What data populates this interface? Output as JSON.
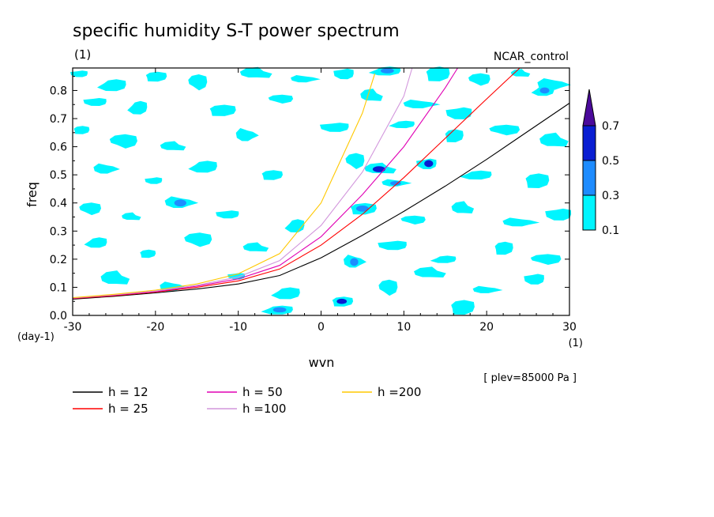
{
  "title": "specific humidity S-T power spectrum",
  "subtitle_left": "(1)",
  "subtitle_right": "NCAR_control",
  "footnote": "[ plev=85000 Pa ]",
  "colors": {
    "fill_01": "#00f5ff",
    "fill_03": "#1e8cff",
    "fill_05": "#0a1ed2",
    "fill_07": "#4b0a9b"
  },
  "chart_data": {
    "type": "contour",
    "xlabel": "wvn",
    "xunit": "(1)",
    "ylabel": "freq",
    "yunit": "(day-1)",
    "xlim": [
      -30,
      30
    ],
    "ylim": [
      0,
      0.88
    ],
    "xticks": [
      -30,
      -20,
      -10,
      0,
      10,
      20,
      30
    ],
    "xtick_labels": [
      "-30",
      "-20",
      "-10",
      "0",
      "10",
      "20",
      "30"
    ],
    "yticks": [
      0,
      0.1,
      0.2,
      0.3,
      0.4,
      0.5,
      0.6,
      0.7,
      0.8
    ],
    "ytick_labels": [
      "0.0",
      "0.1",
      "0.2",
      "0.3",
      "0.4",
      "0.5",
      "0.6",
      "0.7",
      "0.8"
    ],
    "colorbar": {
      "levels": [
        0.1,
        0.3,
        0.5,
        0.7
      ],
      "level_labels": [
        "0.1",
        "0.3",
        "0.5",
        "0.7"
      ],
      "colors": [
        "#00f5ff",
        "#1e8cff",
        "#0a1ed2",
        "#4b0a9b"
      ]
    },
    "series": [
      {
        "name": "h = 12",
        "color": "#000000",
        "x": [
          -30,
          -25,
          -20,
          -15,
          -10,
          -5,
          0,
          5,
          10,
          15,
          20,
          25,
          30
        ],
        "y": [
          0.058,
          0.068,
          0.08,
          0.094,
          0.112,
          0.142,
          0.205,
          0.285,
          0.37,
          0.46,
          0.555,
          0.655,
          0.755
        ]
      },
      {
        "name": "h = 25",
        "color": "#ff0000",
        "x": [
          -30,
          -25,
          -20,
          -15,
          -10,
          -5,
          0,
          5,
          10,
          15,
          20,
          24
        ],
        "y": [
          0.06,
          0.07,
          0.083,
          0.1,
          0.123,
          0.165,
          0.25,
          0.36,
          0.49,
          0.63,
          0.77,
          0.88
        ]
      },
      {
        "name": "h = 50",
        "color": "#e000b4",
        "x": [
          -30,
          -25,
          -20,
          -15,
          -10,
          -5,
          0,
          5,
          10,
          15,
          16.5
        ],
        "y": [
          0.061,
          0.072,
          0.085,
          0.104,
          0.13,
          0.178,
          0.28,
          0.43,
          0.6,
          0.81,
          0.88
        ]
      },
      {
        "name": "h =100",
        "color": "#d296dc",
        "x": [
          -30,
          -25,
          -20,
          -15,
          -10,
          -5,
          0,
          5,
          10,
          11
        ],
        "y": [
          0.062,
          0.073,
          0.087,
          0.107,
          0.137,
          0.195,
          0.32,
          0.51,
          0.78,
          0.88
        ]
      },
      {
        "name": "h =200",
        "color": "#ffc800",
        "x": [
          -30,
          -25,
          -20,
          -15,
          -10,
          -5,
          0,
          5,
          6.5
        ],
        "y": [
          0.063,
          0.075,
          0.09,
          0.112,
          0.148,
          0.22,
          0.4,
          0.72,
          0.86
        ]
      }
    ],
    "contour_patches": [
      {
        "x": -29,
        "y": 0.86,
        "level": 0.1
      },
      {
        "x": -25,
        "y": 0.82,
        "level": 0.1
      },
      {
        "x": -20,
        "y": 0.85,
        "level": 0.1
      },
      {
        "x": -15,
        "y": 0.83,
        "level": 0.1
      },
      {
        "x": -8,
        "y": 0.86,
        "level": 0.1
      },
      {
        "x": -2,
        "y": 0.84,
        "level": 0.1
      },
      {
        "x": 3,
        "y": 0.86,
        "level": 0.1
      },
      {
        "x": 8,
        "y": 0.87,
        "level": 0.3
      },
      {
        "x": 14,
        "y": 0.86,
        "level": 0.1
      },
      {
        "x": 19,
        "y": 0.84,
        "level": 0.1
      },
      {
        "x": 24,
        "y": 0.86,
        "level": 0.1
      },
      {
        "x": 28,
        "y": 0.82,
        "level": 0.1
      },
      {
        "x": -27,
        "y": 0.76,
        "level": 0.1
      },
      {
        "x": -22,
        "y": 0.74,
        "level": 0.1
      },
      {
        "x": -12,
        "y": 0.73,
        "level": 0.1
      },
      {
        "x": -5,
        "y": 0.77,
        "level": 0.1
      },
      {
        "x": 6,
        "y": 0.78,
        "level": 0.1
      },
      {
        "x": 12,
        "y": 0.75,
        "level": 0.1
      },
      {
        "x": 17,
        "y": 0.72,
        "level": 0.1
      },
      {
        "x": 27,
        "y": 0.8,
        "level": 0.3
      },
      {
        "x": -29,
        "y": 0.66,
        "level": 0.1
      },
      {
        "x": -24,
        "y": 0.62,
        "level": 0.1
      },
      {
        "x": -18,
        "y": 0.6,
        "level": 0.1
      },
      {
        "x": -9,
        "y": 0.64,
        "level": 0.1
      },
      {
        "x": 2,
        "y": 0.67,
        "level": 0.1
      },
      {
        "x": 10,
        "y": 0.68,
        "level": 0.1
      },
      {
        "x": 16,
        "y": 0.64,
        "level": 0.1
      },
      {
        "x": 22,
        "y": 0.66,
        "level": 0.1
      },
      {
        "x": 28,
        "y": 0.62,
        "level": 0.1
      },
      {
        "x": -26,
        "y": 0.52,
        "level": 0.1
      },
      {
        "x": -20,
        "y": 0.48,
        "level": 0.1
      },
      {
        "x": -14,
        "y": 0.53,
        "level": 0.1
      },
      {
        "x": -6,
        "y": 0.5,
        "level": 0.1
      },
      {
        "x": 4,
        "y": 0.55,
        "level": 0.1
      },
      {
        "x": 7,
        "y": 0.52,
        "level": 0.5
      },
      {
        "x": 9,
        "y": 0.47,
        "level": 0.3
      },
      {
        "x": 13,
        "y": 0.54,
        "level": 0.5
      },
      {
        "x": 19,
        "y": 0.5,
        "level": 0.1
      },
      {
        "x": 26,
        "y": 0.48,
        "level": 0.1
      },
      {
        "x": -28,
        "y": 0.38,
        "level": 0.1
      },
      {
        "x": -23,
        "y": 0.35,
        "level": 0.1
      },
      {
        "x": -17,
        "y": 0.4,
        "level": 0.3
      },
      {
        "x": -11,
        "y": 0.36,
        "level": 0.1
      },
      {
        "x": -3,
        "y": 0.32,
        "level": 0.1
      },
      {
        "x": 5,
        "y": 0.38,
        "level": 0.3
      },
      {
        "x": 11,
        "y": 0.34,
        "level": 0.1
      },
      {
        "x": 17,
        "y": 0.38,
        "level": 0.1
      },
      {
        "x": 24,
        "y": 0.33,
        "level": 0.1
      },
      {
        "x": 29,
        "y": 0.36,
        "level": 0.1
      },
      {
        "x": -27,
        "y": 0.26,
        "level": 0.1
      },
      {
        "x": -21,
        "y": 0.22,
        "level": 0.1
      },
      {
        "x": -15,
        "y": 0.27,
        "level": 0.1
      },
      {
        "x": -8,
        "y": 0.24,
        "level": 0.1
      },
      {
        "x": 4,
        "y": 0.19,
        "level": 0.3
      },
      {
        "x": 9,
        "y": 0.25,
        "level": 0.1
      },
      {
        "x": 15,
        "y": 0.2,
        "level": 0.1
      },
      {
        "x": 22,
        "y": 0.24,
        "level": 0.1
      },
      {
        "x": 27,
        "y": 0.2,
        "level": 0.1
      },
      {
        "x": -25,
        "y": 0.13,
        "level": 0.1
      },
      {
        "x": -18,
        "y": 0.1,
        "level": 0.1
      },
      {
        "x": -10,
        "y": 0.14,
        "level": 0.1
      },
      {
        "x": -4,
        "y": 0.08,
        "level": 0.1
      },
      {
        "x": 2.5,
        "y": 0.05,
        "level": 0.5
      },
      {
        "x": 8,
        "y": 0.1,
        "level": 0.1
      },
      {
        "x": 13,
        "y": 0.15,
        "level": 0.1
      },
      {
        "x": 20,
        "y": 0.09,
        "level": 0.1
      },
      {
        "x": 26,
        "y": 0.13,
        "level": 0.1
      },
      {
        "x": -5,
        "y": 0.02,
        "level": 0.3
      },
      {
        "x": 17,
        "y": 0.03,
        "level": 0.1
      }
    ]
  }
}
